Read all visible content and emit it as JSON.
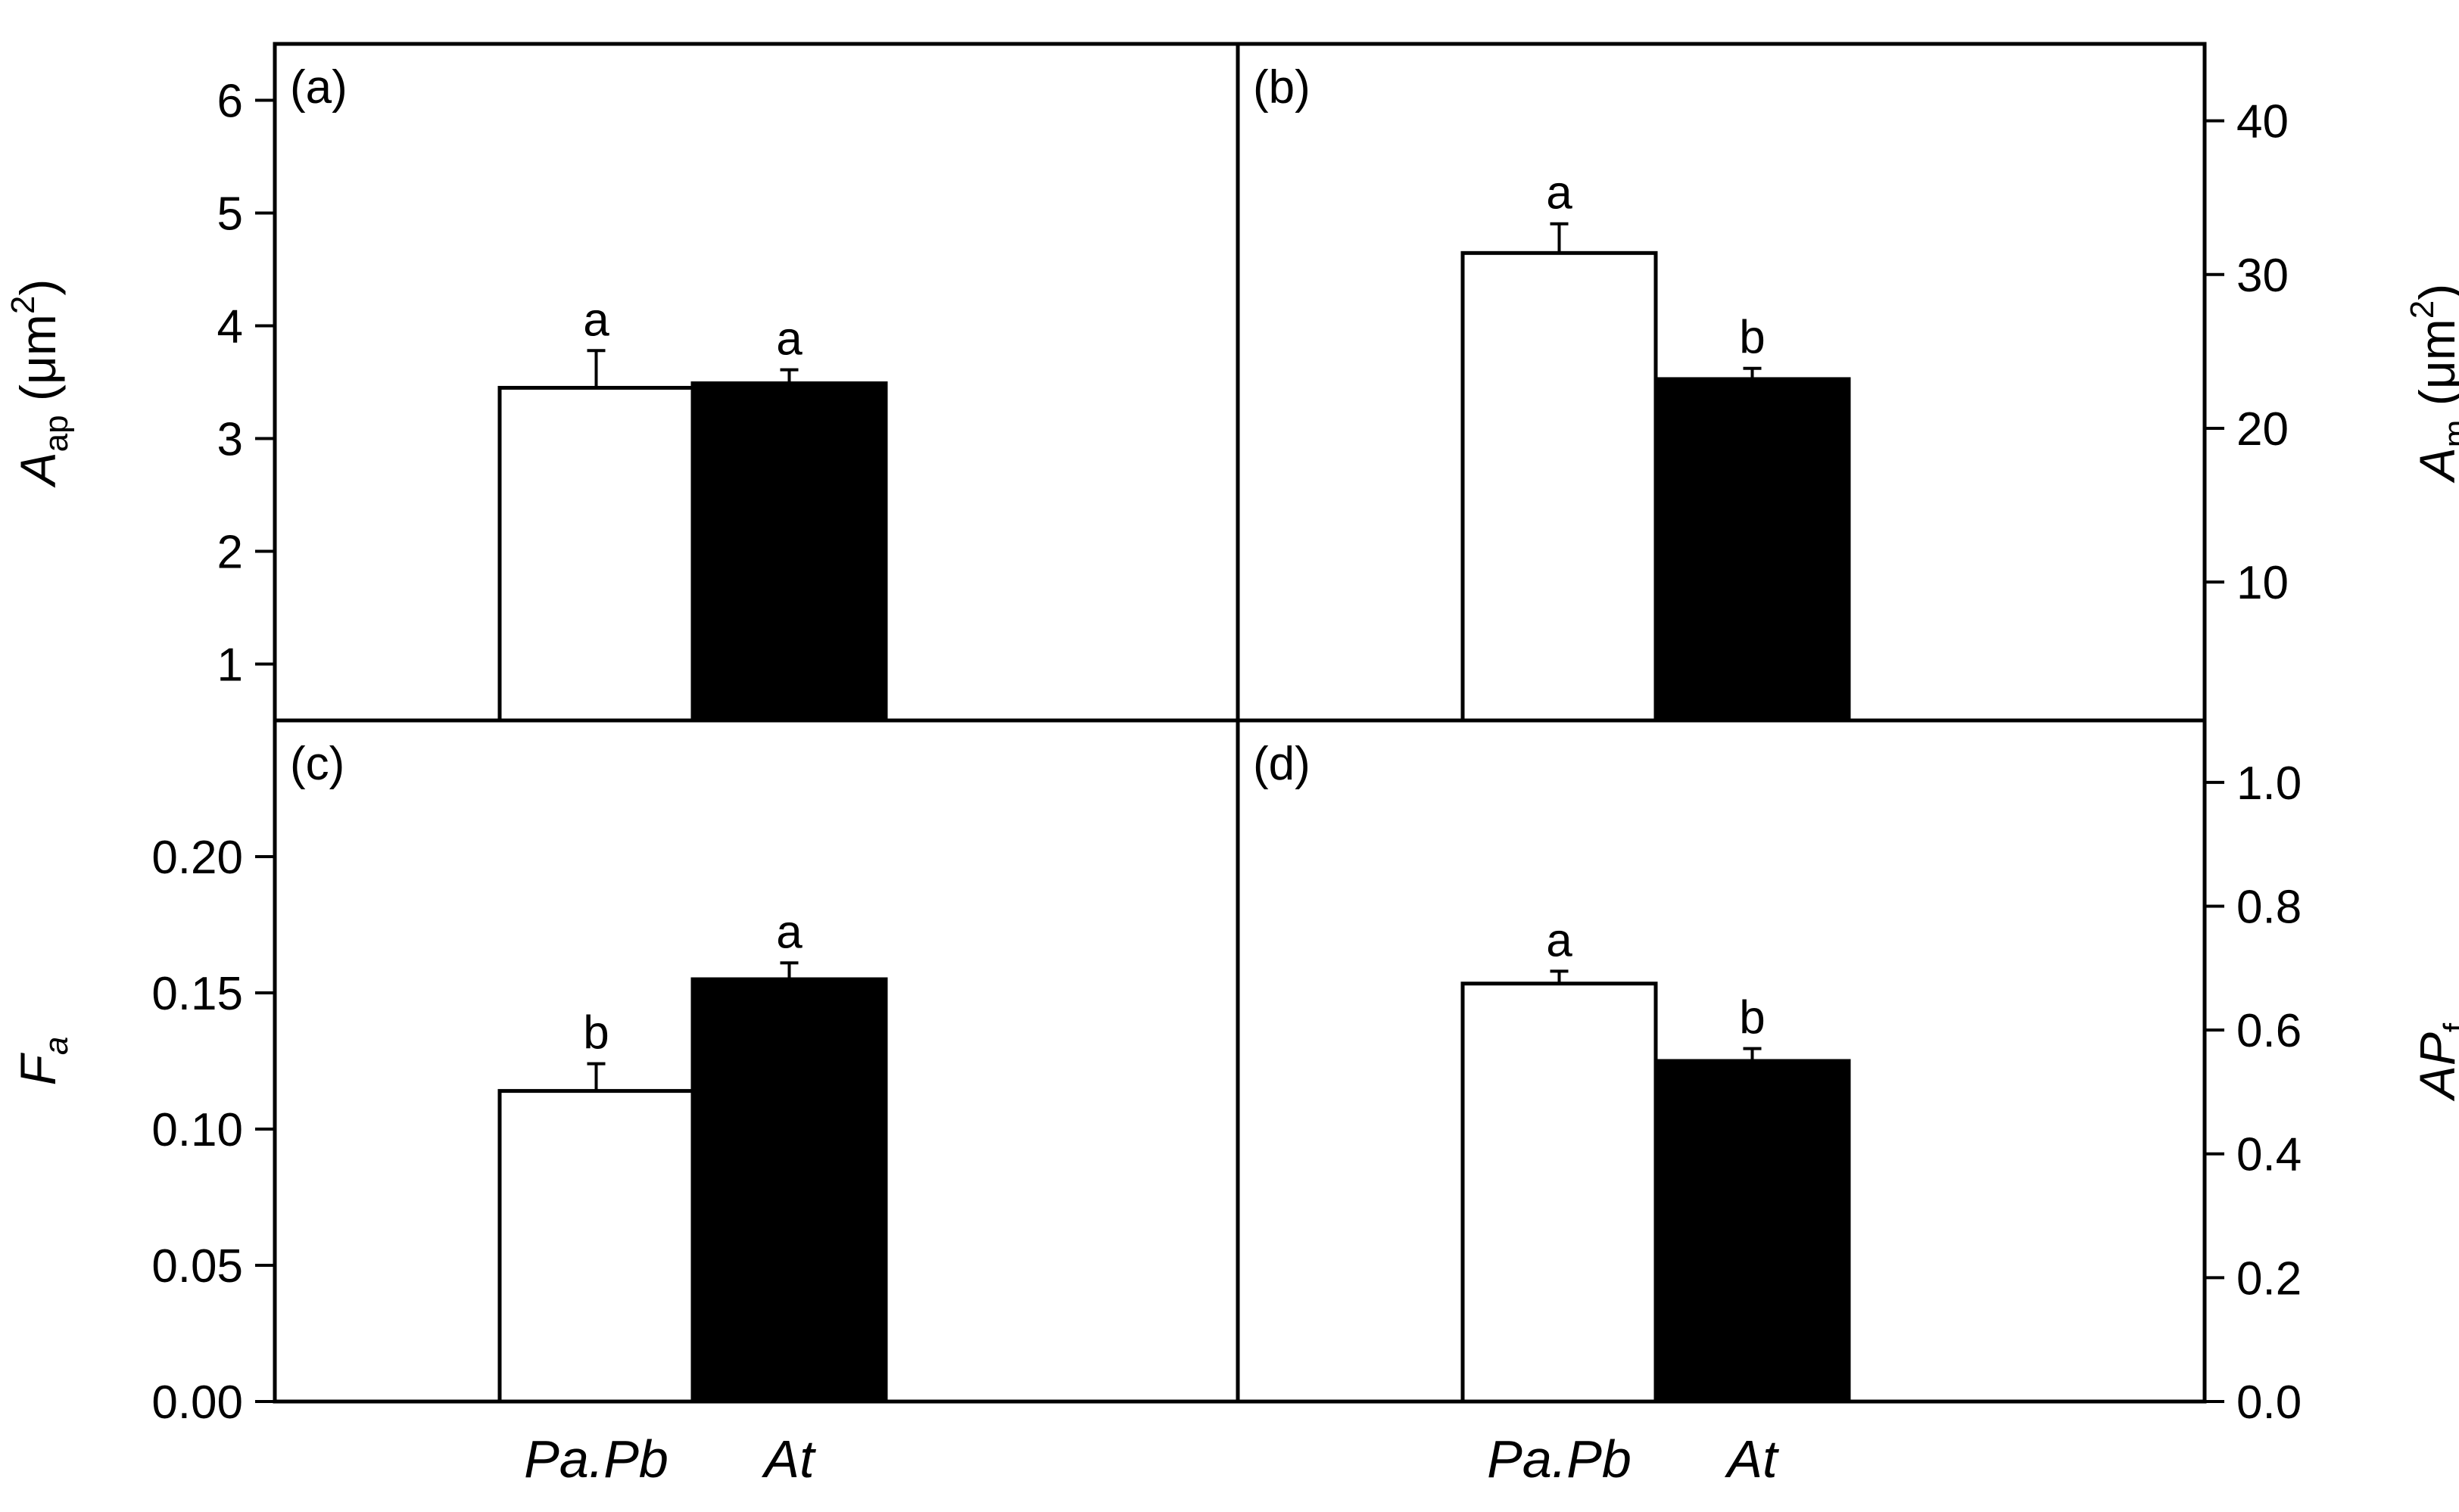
{
  "chart_data": [
    {
      "id": "a",
      "type": "bar",
      "panel_label": "(a)",
      "categories": [
        "Pa.Pb",
        "At"
      ],
      "values": [
        3.45,
        3.49
      ],
      "errors": [
        0.33,
        0.12
      ],
      "significance": [
        "a",
        "a"
      ],
      "bar_fill": [
        "#ffffff",
        "#000000"
      ],
      "ylabel": {
        "main": "A",
        "sub": "ap",
        "unit_pre": " (μm",
        "sup": "2",
        "unit_post": ")"
      },
      "y_axis_side": "left",
      "ylim": [
        0.5,
        6.5
      ],
      "yticks": [
        1,
        2,
        3,
        4,
        5,
        6
      ],
      "ytick_labels": [
        "1",
        "2",
        "3",
        "4",
        "5",
        "6"
      ]
    },
    {
      "id": "b",
      "type": "bar",
      "panel_label": "(b)",
      "categories": [
        "Pa.Pb",
        "At"
      ],
      "values": [
        31.4,
        23.2
      ],
      "errors": [
        1.9,
        0.7
      ],
      "significance": [
        "a",
        "b"
      ],
      "bar_fill": [
        "#ffffff",
        "#000000"
      ],
      "ylabel": {
        "main": "A",
        "sub": "m",
        "unit_pre": " (μm",
        "sup": "2",
        "unit_post": ")"
      },
      "y_axis_side": "right",
      "ylim": [
        1,
        45
      ],
      "yticks": [
        10,
        20,
        30,
        40
      ],
      "ytick_labels": [
        "10",
        "20",
        "30",
        "40"
      ]
    },
    {
      "id": "c",
      "type": "bar",
      "panel_label": "(c)",
      "categories": [
        "Pa.Pb",
        "At"
      ],
      "values": [
        0.114,
        0.155
      ],
      "errors": [
        0.01,
        0.006
      ],
      "significance": [
        "b",
        "a"
      ],
      "bar_fill": [
        "#ffffff",
        "#000000"
      ],
      "ylabel": {
        "main": "F",
        "sub": "a"
      },
      "y_axis_side": "left",
      "ylim": [
        0,
        0.25
      ],
      "yticks": [
        0,
        0.05,
        0.1,
        0.15,
        0.2
      ],
      "ytick_labels": [
        "0.00",
        "0.05",
        "0.10",
        "0.15",
        "0.20"
      ]
    },
    {
      "id": "d",
      "type": "bar",
      "panel_label": "(d)",
      "categories": [
        "Pa.Pb",
        "At"
      ],
      "values": [
        0.675,
        0.55
      ],
      "errors": [
        0.02,
        0.02
      ],
      "significance": [
        "a",
        "b"
      ],
      "bar_fill": [
        "#ffffff",
        "#000000"
      ],
      "ylabel": {
        "main": "AP",
        "sub": "f"
      },
      "y_axis_side": "right",
      "ylim": [
        0,
        1.1
      ],
      "yticks": [
        0,
        0.2,
        0.4,
        0.6,
        0.8,
        1.0
      ],
      "ytick_labels": [
        "0.0",
        "0.2",
        "0.4",
        "0.6",
        "0.8",
        "1.0"
      ]
    }
  ],
  "x_category_labels": [
    "Pa.Pb",
    "At",
    "Pa.Pb",
    "At"
  ],
  "colors": {
    "axis": "#000000",
    "bar_outline": "#000000"
  }
}
